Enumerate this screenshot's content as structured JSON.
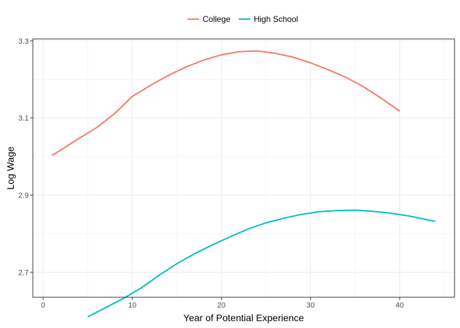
{
  "chart_data": {
    "type": "line",
    "title": "",
    "xlabel": "Year of Potential Experience",
    "ylabel": "Log Wage",
    "xlim": [
      -1.15,
      46.15
    ],
    "ylim": [
      2.635,
      3.305
    ],
    "x_ticks": [
      0,
      10,
      20,
      30,
      40
    ],
    "y_ticks": [
      2.7,
      2.9,
      3.1,
      3.3
    ],
    "x_tick_labels": [
      "0",
      "10",
      "20",
      "30",
      "40"
    ],
    "y_tick_labels": [
      "2.7",
      "2.9",
      "3.1",
      "3.3"
    ],
    "grid": true,
    "legend": {
      "position": "top",
      "entries": [
        "College",
        "High School"
      ]
    },
    "series": [
      {
        "name": "College",
        "color": "#F8766D",
        "x": [
          1,
          2,
          4,
          6,
          8,
          10,
          12,
          14,
          16,
          18,
          20,
          22,
          24,
          26,
          28,
          30,
          32,
          34,
          36,
          38,
          40
        ],
        "y": [
          3.003,
          3.017,
          3.047,
          3.075,
          3.111,
          3.156,
          3.184,
          3.21,
          3.232,
          3.25,
          3.264,
          3.272,
          3.274,
          3.268,
          3.258,
          3.243,
          3.225,
          3.205,
          3.18,
          3.15,
          3.118
        ]
      },
      {
        "name": "High School",
        "color": "#00BFC4",
        "x": [
          5,
          7,
          9,
          11,
          13,
          15,
          17,
          19,
          21,
          23,
          25,
          27,
          29,
          31,
          33,
          35,
          37,
          39,
          41,
          44
        ],
        "y": [
          2.584,
          2.608,
          2.632,
          2.659,
          2.692,
          2.722,
          2.748,
          2.771,
          2.792,
          2.812,
          2.828,
          2.84,
          2.85,
          2.857,
          2.86,
          2.861,
          2.858,
          2.853,
          2.846,
          2.832
        ]
      }
    ]
  }
}
